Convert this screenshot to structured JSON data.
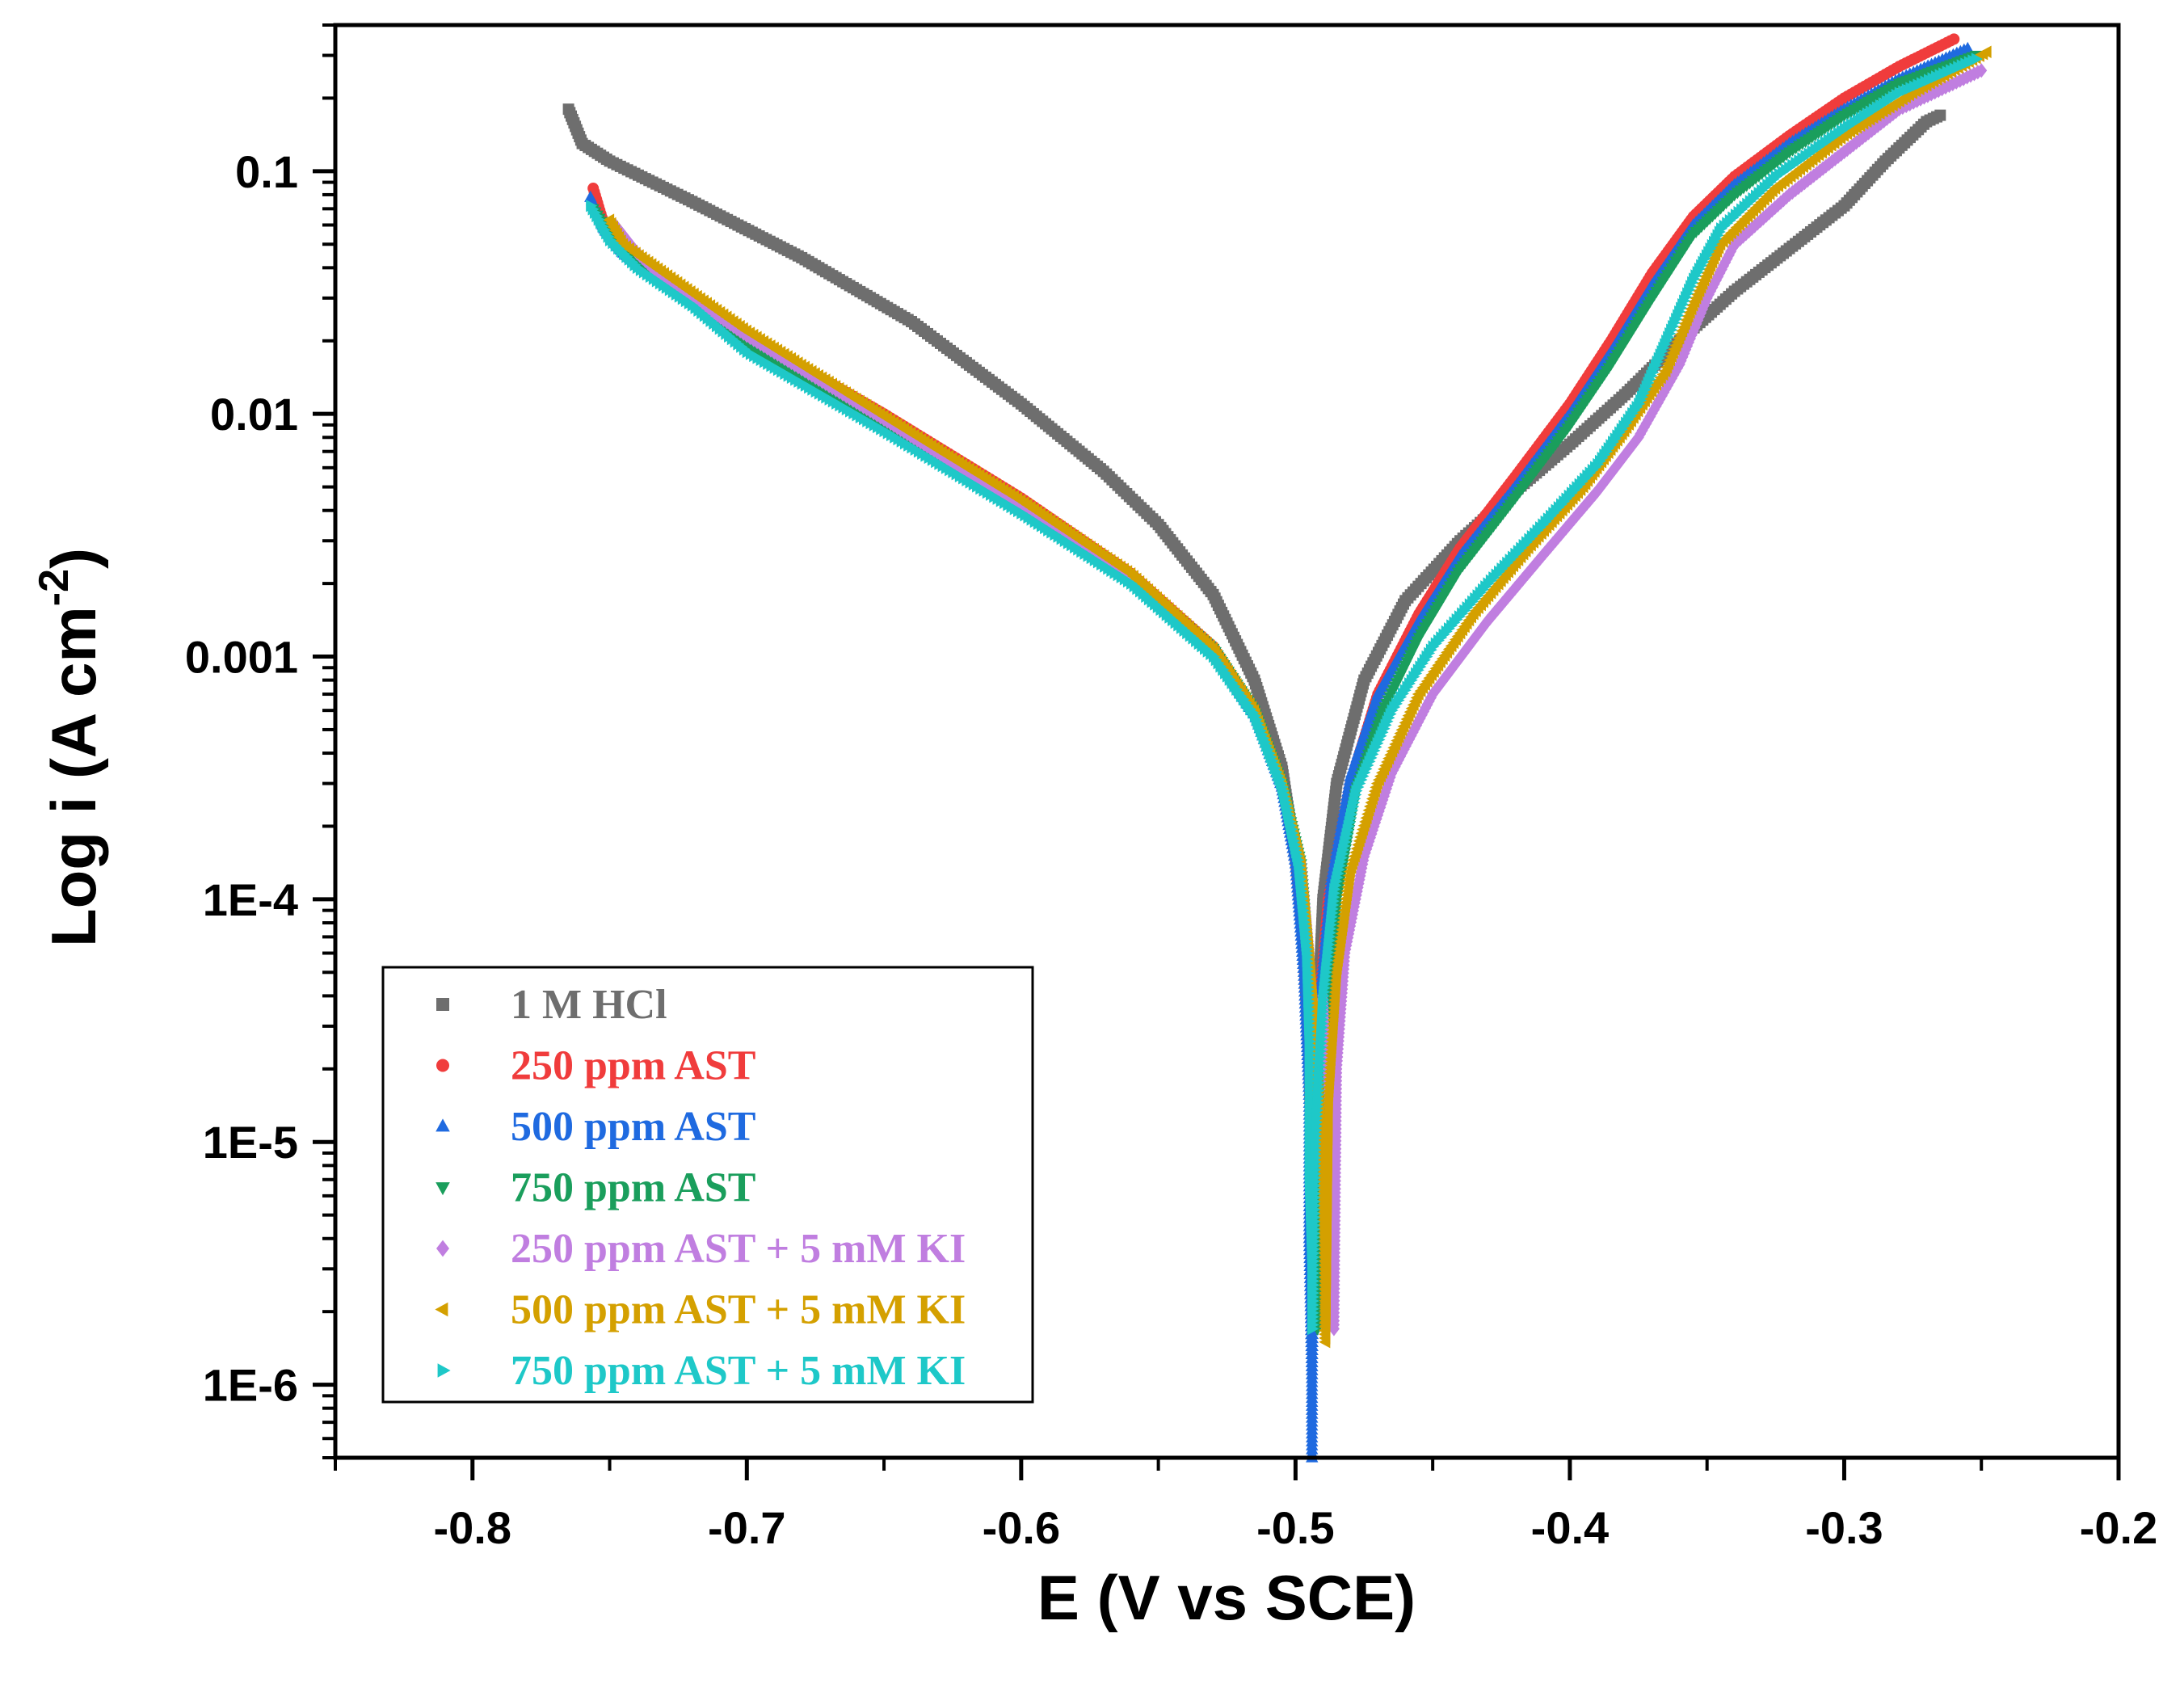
{
  "chart_data": {
    "type": "scatter",
    "xlabel": "E (V vs SCE)",
    "ylabel_main": "Log i (A cm",
    "ylabel_sup": "-2",
    "ylabel_close": ")",
    "xlim": [
      -0.85,
      -0.2
    ],
    "ylim": [
      5e-07,
      0.4
    ],
    "y_scale": "log",
    "grid": false,
    "legend_position": "bottom-left",
    "x_ticks": [
      {
        "value": -0.8,
        "label": "-0.8"
      },
      {
        "value": -0.7,
        "label": "-0.7"
      },
      {
        "value": -0.6,
        "label": "-0.6"
      },
      {
        "value": -0.5,
        "label": "-0.5"
      },
      {
        "value": -0.4,
        "label": "-0.4"
      },
      {
        "value": -0.3,
        "label": "-0.3"
      },
      {
        "value": -0.2,
        "label": "-0.2"
      }
    ],
    "y_ticks": [
      {
        "value": 0.1,
        "label": "0.1"
      },
      {
        "value": 0.01,
        "label": "0.01"
      },
      {
        "value": 0.001,
        "label": "0.001"
      },
      {
        "value": 0.0001,
        "label": "1E-4"
      },
      {
        "value": 1e-05,
        "label": "1E-5"
      },
      {
        "value": 1e-06,
        "label": "1E-6"
      }
    ],
    "series": [
      {
        "name": "1 M HCl",
        "color": "#6e6e6e",
        "marker": "square",
        "cathodic": [
          [
            -0.765,
            0.18
          ],
          [
            -0.76,
            0.13
          ],
          [
            -0.75,
            0.11
          ],
          [
            -0.72,
            0.075
          ],
          [
            -0.68,
            0.044
          ],
          [
            -0.64,
            0.024
          ],
          [
            -0.6,
            0.011
          ],
          [
            -0.57,
            0.0058
          ],
          [
            -0.55,
            0.0035
          ],
          [
            -0.53,
            0.0018
          ],
          [
            -0.515,
            0.0008
          ],
          [
            -0.505,
            0.00035
          ],
          [
            -0.5,
            0.00015
          ],
          [
            -0.496,
            6e-05
          ],
          [
            -0.494,
            1.2e-05
          ],
          [
            -0.493,
            5e-06
          ]
        ],
        "anodic": [
          [
            -0.493,
            5e-06
          ],
          [
            -0.492,
            3e-05
          ],
          [
            -0.49,
            0.0001
          ],
          [
            -0.485,
            0.0003
          ],
          [
            -0.475,
            0.0008
          ],
          [
            -0.46,
            0.0017
          ],
          [
            -0.44,
            0.003
          ],
          [
            -0.42,
            0.0048
          ],
          [
            -0.4,
            0.0075
          ],
          [
            -0.38,
            0.012
          ],
          [
            -0.36,
            0.02
          ],
          [
            -0.34,
            0.032
          ],
          [
            -0.32,
            0.048
          ],
          [
            -0.3,
            0.072
          ],
          [
            -0.285,
            0.11
          ],
          [
            -0.27,
            0.16
          ],
          [
            -0.265,
            0.17
          ]
        ]
      },
      {
        "name": "250 ppm AST",
        "color": "#f03c3c",
        "marker": "circle",
        "cathodic": [
          [
            -0.756,
            0.085
          ],
          [
            -0.752,
            0.06
          ],
          [
            -0.745,
            0.048
          ],
          [
            -0.73,
            0.036
          ],
          [
            -0.7,
            0.021
          ],
          [
            -0.65,
            0.01
          ],
          [
            -0.6,
            0.0045
          ],
          [
            -0.56,
            0.0022
          ],
          [
            -0.53,
            0.0011
          ],
          [
            -0.515,
            0.0006
          ],
          [
            -0.505,
            0.0003
          ],
          [
            -0.5,
            0.00015
          ],
          [
            -0.497,
            6e-05
          ],
          [
            -0.495,
            2e-05
          ],
          [
            -0.494,
            6e-06
          ],
          [
            -0.494,
            2.3e-06
          ]
        ],
        "anodic": [
          [
            -0.494,
            2.3e-06
          ],
          [
            -0.493,
            8e-06
          ],
          [
            -0.492,
            3e-05
          ],
          [
            -0.488,
            0.0001
          ],
          [
            -0.48,
            0.0003
          ],
          [
            -0.47,
            0.0007
          ],
          [
            -0.455,
            0.0015
          ],
          [
            -0.44,
            0.0028
          ],
          [
            -0.42,
            0.0055
          ],
          [
            -0.4,
            0.011
          ],
          [
            -0.385,
            0.02
          ],
          [
            -0.37,
            0.038
          ],
          [
            -0.355,
            0.065
          ],
          [
            -0.34,
            0.095
          ],
          [
            -0.32,
            0.14
          ],
          [
            -0.3,
            0.2
          ],
          [
            -0.28,
            0.27
          ],
          [
            -0.26,
            0.35
          ]
        ]
      },
      {
        "name": "500 ppm AST",
        "color": "#1f6ae0",
        "marker": "triangle-up",
        "cathodic": [
          [
            -0.757,
            0.078
          ],
          [
            -0.752,
            0.058
          ],
          [
            -0.745,
            0.046
          ],
          [
            -0.73,
            0.034
          ],
          [
            -0.7,
            0.02
          ],
          [
            -0.65,
            0.0095
          ],
          [
            -0.6,
            0.0043
          ],
          [
            -0.56,
            0.0021
          ],
          [
            -0.53,
            0.00105
          ],
          [
            -0.515,
            0.00058
          ],
          [
            -0.505,
            0.00029
          ],
          [
            -0.5,
            0.00014
          ],
          [
            -0.497,
            5e-05
          ],
          [
            -0.495,
            1.5e-05
          ],
          [
            -0.495,
            4e-06
          ],
          [
            -0.494,
            1.1e-06
          ],
          [
            -0.494,
            5e-07
          ]
        ],
        "anodic": [
          [
            -0.494,
            1.1e-06
          ],
          [
            -0.493,
            1e-05
          ],
          [
            -0.491,
            4e-05
          ],
          [
            -0.487,
            0.00012
          ],
          [
            -0.48,
            0.00032
          ],
          [
            -0.47,
            0.0007
          ],
          [
            -0.455,
            0.0014
          ],
          [
            -0.44,
            0.0026
          ],
          [
            -0.42,
            0.005
          ],
          [
            -0.4,
            0.01
          ],
          [
            -0.385,
            0.018
          ],
          [
            -0.37,
            0.034
          ],
          [
            -0.355,
            0.06
          ],
          [
            -0.34,
            0.088
          ],
          [
            -0.32,
            0.13
          ],
          [
            -0.3,
            0.18
          ],
          [
            -0.28,
            0.24
          ],
          [
            -0.255,
            0.32
          ]
        ]
      },
      {
        "name": "750 ppm AST",
        "color": "#1a9e5c",
        "marker": "triangle-down",
        "cathodic": [
          [
            -0.756,
            0.07
          ],
          [
            -0.75,
            0.055
          ],
          [
            -0.74,
            0.043
          ],
          [
            -0.72,
            0.03
          ],
          [
            -0.7,
            0.019
          ],
          [
            -0.65,
            0.0092
          ],
          [
            -0.6,
            0.0042
          ],
          [
            -0.56,
            0.0021
          ],
          [
            -0.53,
            0.00108
          ],
          [
            -0.515,
            0.0006
          ],
          [
            -0.505,
            0.0003
          ],
          [
            -0.498,
            0.00014
          ],
          [
            -0.495,
            5e-05
          ],
          [
            -0.494,
            1.5e-05
          ],
          [
            -0.493,
            4.5e-06
          ],
          [
            -0.492,
            1.7e-06
          ]
        ],
        "anodic": [
          [
            -0.492,
            1.7e-06
          ],
          [
            -0.491,
            8e-06
          ],
          [
            -0.489,
            3e-05
          ],
          [
            -0.485,
            0.0001
          ],
          [
            -0.478,
            0.00028
          ],
          [
            -0.468,
            0.0006
          ],
          [
            -0.455,
            0.0012
          ],
          [
            -0.44,
            0.0023
          ],
          [
            -0.42,
            0.0045
          ],
          [
            -0.4,
            0.009
          ],
          [
            -0.385,
            0.016
          ],
          [
            -0.37,
            0.03
          ],
          [
            -0.355,
            0.055
          ],
          [
            -0.34,
            0.08
          ],
          [
            -0.32,
            0.12
          ],
          [
            -0.3,
            0.17
          ],
          [
            -0.28,
            0.23
          ],
          [
            -0.252,
            0.3
          ]
        ]
      },
      {
        "name": "250 ppm AST + 5 mM KI",
        "color": "#c07ee0",
        "marker": "diamond",
        "cathodic": [
          [
            -0.748,
            0.06
          ],
          [
            -0.74,
            0.046
          ],
          [
            -0.73,
            0.036
          ],
          [
            -0.7,
            0.021
          ],
          [
            -0.65,
            0.0095
          ],
          [
            -0.6,
            0.0042
          ],
          [
            -0.56,
            0.0021
          ],
          [
            -0.53,
            0.00105
          ],
          [
            -0.515,
            0.00058
          ],
          [
            -0.505,
            0.00029
          ],
          [
            -0.498,
            0.00014
          ],
          [
            -0.495,
            6e-05
          ],
          [
            -0.494,
            2.5e-05
          ]
        ],
        "anodic": [
          [
            -0.494,
            2.5e-05
          ],
          [
            -0.49,
            4e-05
          ],
          [
            -0.487,
            1e-05
          ],
          [
            -0.486,
            5.3e-06
          ],
          [
            -0.486,
            1.7e-06
          ],
          [
            -0.485,
            2e-05
          ],
          [
            -0.482,
            6e-05
          ],
          [
            -0.475,
            0.00015
          ],
          [
            -0.465,
            0.00033
          ],
          [
            -0.45,
            0.0007
          ],
          [
            -0.43,
            0.0014
          ],
          [
            -0.41,
            0.0026
          ],
          [
            -0.39,
            0.0048
          ],
          [
            -0.375,
            0.008
          ],
          [
            -0.36,
            0.016
          ],
          [
            -0.35,
            0.03
          ],
          [
            -0.34,
            0.05
          ],
          [
            -0.32,
            0.08
          ],
          [
            -0.3,
            0.12
          ],
          [
            -0.28,
            0.18
          ],
          [
            -0.25,
            0.26
          ]
        ]
      },
      {
        "name": "500 ppm AST + 5 mM KI",
        "color": "#d4a000",
        "marker": "triangle-left",
        "cathodic": [
          [
            -0.75,
            0.063
          ],
          [
            -0.745,
            0.05
          ],
          [
            -0.73,
            0.038
          ],
          [
            -0.7,
            0.022
          ],
          [
            -0.65,
            0.0098
          ],
          [
            -0.6,
            0.0044
          ],
          [
            -0.56,
            0.0022
          ],
          [
            -0.53,
            0.00108
          ],
          [
            -0.515,
            0.0006
          ],
          [
            -0.505,
            0.0003
          ],
          [
            -0.498,
            0.00014
          ],
          [
            -0.495,
            6e-05
          ],
          [
            -0.493,
            3e-05
          ]
        ],
        "anodic": [
          [
            -0.493,
            3e-05
          ],
          [
            -0.491,
            1.2e-05
          ],
          [
            -0.49,
            5.5e-06
          ],
          [
            -0.489,
            2.3e-06
          ],
          [
            -0.489,
            1.5e-06
          ],
          [
            -0.488,
            1.5e-05
          ],
          [
            -0.485,
            5e-05
          ],
          [
            -0.48,
            0.00013
          ],
          [
            -0.47,
            0.0003
          ],
          [
            -0.455,
            0.0007
          ],
          [
            -0.435,
            0.0015
          ],
          [
            -0.415,
            0.0028
          ],
          [
            -0.395,
            0.005
          ],
          [
            -0.38,
            0.0085
          ],
          [
            -0.365,
            0.015
          ],
          [
            -0.355,
            0.028
          ],
          [
            -0.345,
            0.05
          ],
          [
            -0.325,
            0.085
          ],
          [
            -0.3,
            0.14
          ],
          [
            -0.275,
            0.21
          ],
          [
            -0.248,
            0.31
          ]
        ]
      },
      {
        "name": "750 ppm AST + 5 mM KI",
        "color": "#1ec8c8",
        "marker": "triangle-right",
        "cathodic": [
          [
            -0.757,
            0.072
          ],
          [
            -0.75,
            0.052
          ],
          [
            -0.74,
            0.04
          ],
          [
            -0.72,
            0.028
          ],
          [
            -0.7,
            0.018
          ],
          [
            -0.65,
            0.0085
          ],
          [
            -0.6,
            0.0039
          ],
          [
            -0.56,
            0.002
          ],
          [
            -0.53,
            0.001
          ],
          [
            -0.515,
            0.00057
          ],
          [
            -0.505,
            0.00029
          ],
          [
            -0.499,
            0.00014
          ],
          [
            -0.496,
            6e-05
          ],
          [
            -0.495,
            2.5e-05
          ],
          [
            -0.495,
            7e-06
          ],
          [
            -0.494,
            3.1e-06
          ],
          [
            -0.494,
            1.7e-06
          ]
        ],
        "anodic": [
          [
            -0.494,
            1.7e-06
          ],
          [
            -0.493,
            1e-05
          ],
          [
            -0.49,
            4e-05
          ],
          [
            -0.486,
            0.00011
          ],
          [
            -0.478,
            0.00028
          ],
          [
            -0.465,
            0.0006
          ],
          [
            -0.45,
            0.0011
          ],
          [
            -0.43,
            0.002
          ],
          [
            -0.41,
            0.0035
          ],
          [
            -0.39,
            0.0062
          ],
          [
            -0.375,
            0.011
          ],
          [
            -0.365,
            0.02
          ],
          [
            -0.355,
            0.036
          ],
          [
            -0.345,
            0.058
          ],
          [
            -0.325,
            0.095
          ],
          [
            -0.3,
            0.15
          ],
          [
            -0.28,
            0.21
          ],
          [
            -0.252,
            0.29
          ]
        ]
      }
    ]
  }
}
